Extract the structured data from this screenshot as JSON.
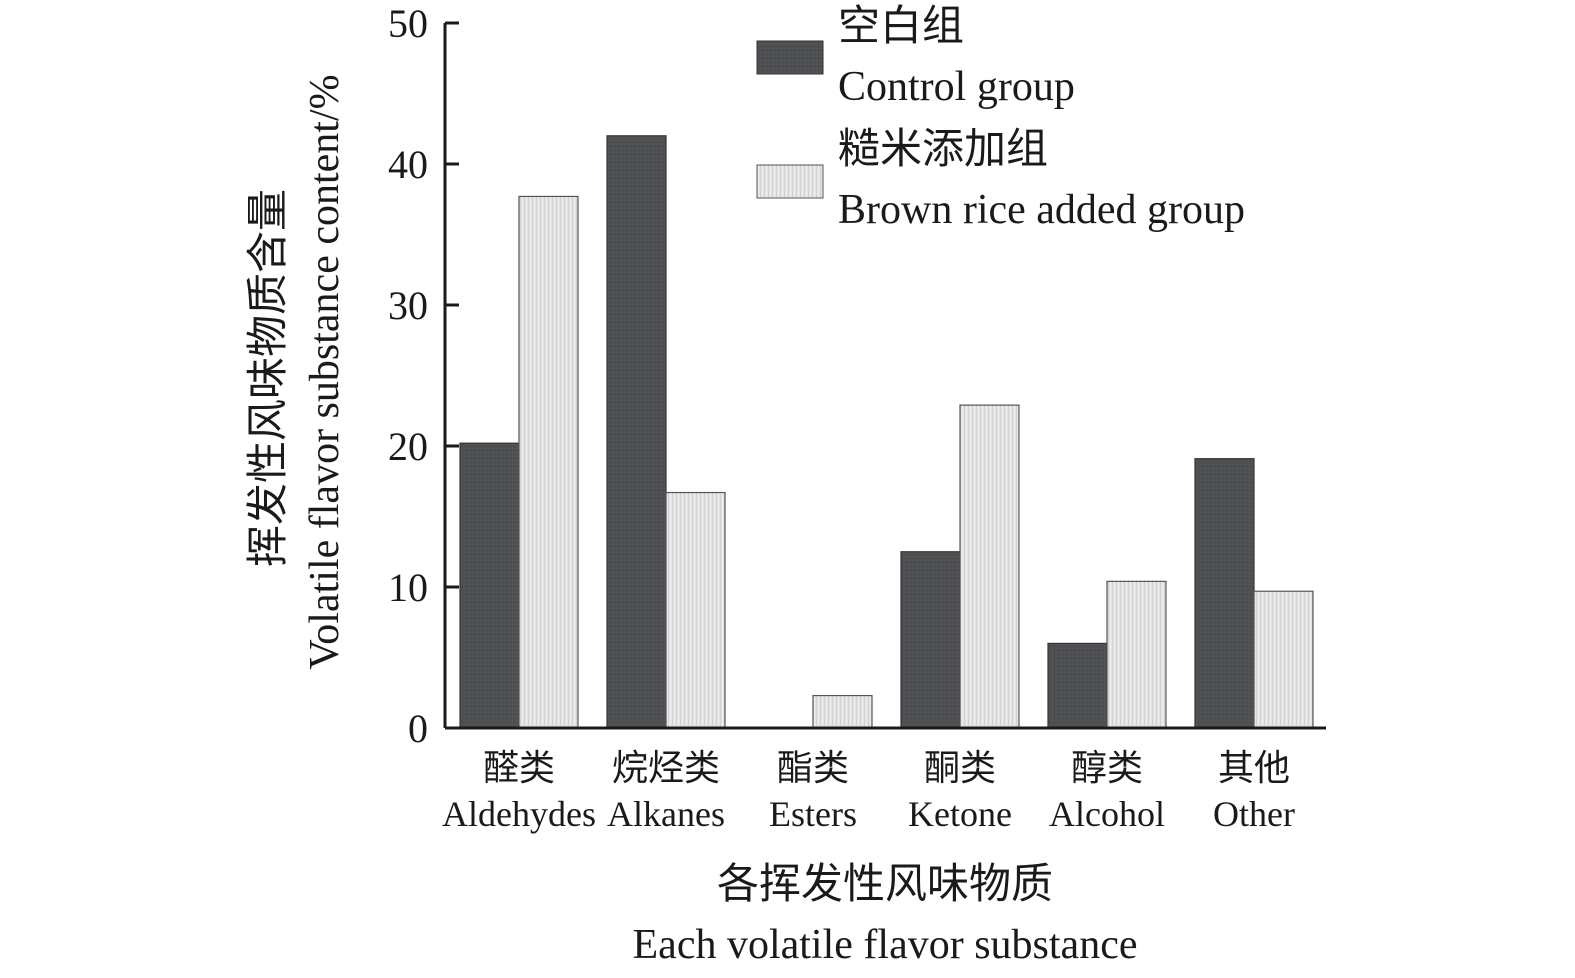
{
  "colors": {
    "control": "#4f5054",
    "brown_rice": "#e2e2e2",
    "axis": "#1a1a1a"
  },
  "chart_data": {
    "type": "bar",
    "categories_cn": [
      "醛类",
      "烷烃类",
      "酯类",
      "酮类",
      "醇类",
      "其他"
    ],
    "categories_en": [
      "Aldehydes",
      "Alkanes",
      "Esters",
      "Ketone",
      "Alcohol",
      "Other"
    ],
    "series": [
      {
        "name_cn": "空白组",
        "name_en": "Control group",
        "values": [
          20.2,
          42.0,
          0,
          12.5,
          6.0,
          19.1
        ]
      },
      {
        "name_cn": "糙米添加组",
        "name_en": "Brown rice added group",
        "values": [
          37.7,
          16.7,
          2.3,
          22.9,
          10.4,
          9.7
        ]
      }
    ],
    "ylim": [
      0,
      50
    ],
    "yticks": [
      0,
      10,
      20,
      30,
      40,
      50
    ],
    "ylabel_cn": "挥发性风味物质含量",
    "ylabel_en": "Volatile flavor substance content/%",
    "xlabel_cn": "各挥发性风味物质",
    "xlabel_en": "Each volatile flavor substance",
    "legend_position": "top-right"
  }
}
